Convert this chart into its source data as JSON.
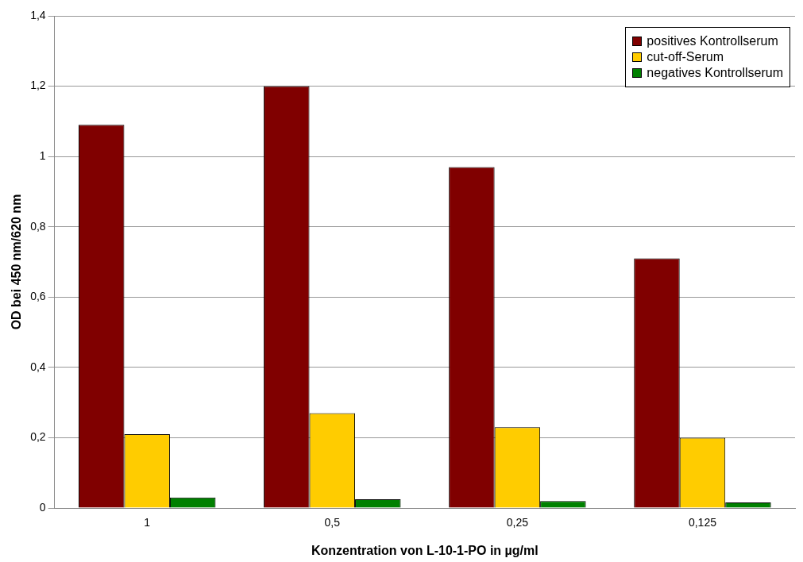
{
  "chart_data": {
    "type": "bar",
    "xlabel": "Konzentration von L-10-1-PO in µg/ml",
    "ylabel": "OD bei 450 nm/620 nm",
    "categories": [
      "1",
      "0,5",
      "0,25",
      "0,125"
    ],
    "series": [
      {
        "name": "positives Kontrollserum",
        "color": "#800000",
        "values": [
          1.09,
          1.2,
          0.97,
          0.71
        ]
      },
      {
        "name": "cut-off-Serum",
        "color": "#ffcc00",
        "values": [
          0.21,
          0.27,
          0.23,
          0.2
        ]
      },
      {
        "name": "negatives Kontrollserum",
        "color": "#008000",
        "values": [
          0.03,
          0.025,
          0.02,
          0.016
        ]
      }
    ],
    "ylim": [
      0,
      1.4
    ],
    "yticks": [
      0,
      {
        "value": 0.2,
        "label": "0,2"
      },
      {
        "value": 0.4,
        "label": "0,4"
      },
      {
        "value": 0.6,
        "label": "0,6"
      },
      {
        "value": 0.8,
        "label": "0,8"
      },
      1,
      {
        "value": 1.2,
        "label": "1,2"
      },
      {
        "value": 1.4,
        "label": "1,4"
      }
    ],
    "grid": "y",
    "legend": "top right"
  }
}
